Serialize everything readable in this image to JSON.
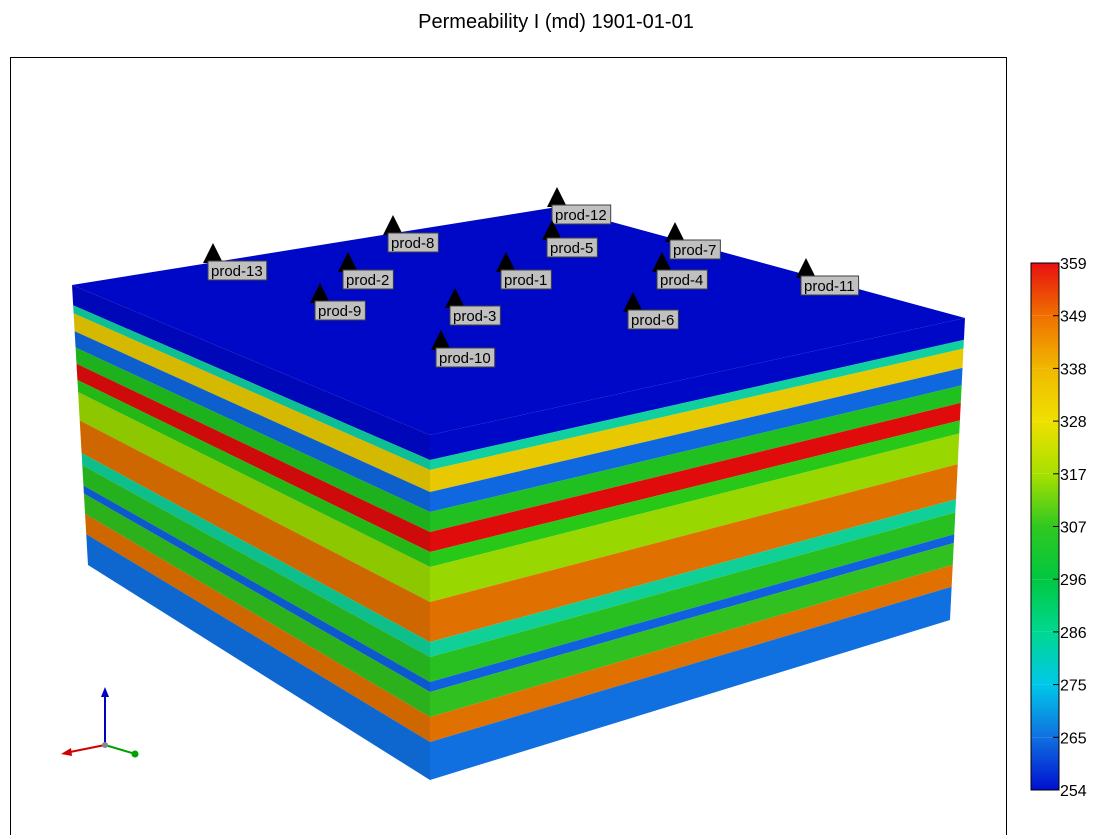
{
  "title": "Permeability I (md) 1901-01-01",
  "wells": [
    "prod-12",
    "prod-8",
    "prod-5",
    "prod-7",
    "prod-13",
    "prod-2",
    "prod-1",
    "prod-4",
    "prod-11",
    "prod-9",
    "prod-3",
    "prod-6",
    "prod-10"
  ],
  "colorbar": {
    "ticks": [
      359,
      349,
      338,
      328,
      317,
      307,
      296,
      286,
      275,
      265,
      254
    ],
    "colors": [
      "#e81010",
      "#f07000",
      "#f0b800",
      "#f0e000",
      "#a8e000",
      "#30c820",
      "#00c840",
      "#00d890",
      "#00c8e8",
      "#1070e0",
      "#0010d0"
    ]
  }
}
